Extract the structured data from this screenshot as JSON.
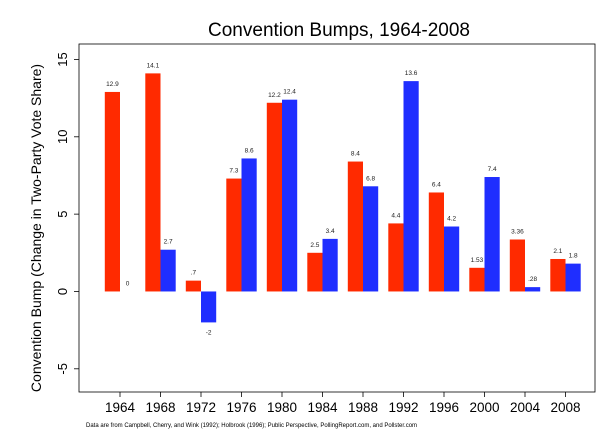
{
  "chart_data": {
    "type": "bar",
    "title": "Convention Bumps, 1964-2008",
    "ylabel": "Convention Bump (Change in Two-Party Vote Share)",
    "xlabel": "",
    "ylim": [
      -6.5,
      16
    ],
    "yticks": [
      -5,
      0,
      5,
      10,
      15
    ],
    "grid": false,
    "legend": "none",
    "categories": [
      "1964",
      "1968",
      "1972",
      "1976",
      "1980",
      "1984",
      "1988",
      "1992",
      "1996",
      "2000",
      "2004",
      "2008"
    ],
    "series": [
      {
        "color": "#ff2a00",
        "values": [
          12.9,
          14.1,
          0.7,
          7.3,
          12.2,
          2.5,
          8.4,
          4.4,
          6.4,
          1.53,
          3.36,
          2.1
        ],
        "labels": [
          "12.9",
          "14.1",
          ".7",
          "7.3",
          "12.2",
          "2.5",
          "8.4",
          "4.4",
          "6.4",
          "1.53",
          "3.36",
          "2.1"
        ]
      },
      {
        "color": "#1f2eff",
        "values": [
          0,
          2.7,
          -2,
          8.6,
          12.4,
          3.4,
          6.8,
          13.6,
          4.2,
          7.4,
          0.28,
          1.8
        ],
        "labels": [
          "0",
          "2.7",
          "-2",
          "8.6",
          "12.4",
          "3.4",
          "6.8",
          "13.6",
          "4.2",
          "7.4",
          ".28",
          "1.8"
        ]
      }
    ],
    "note": "Data are from Campbell, Cherry, and Wink (1992); Holbrook (1996); Public Perspective, PollingReport.com, and Pollster.com"
  }
}
